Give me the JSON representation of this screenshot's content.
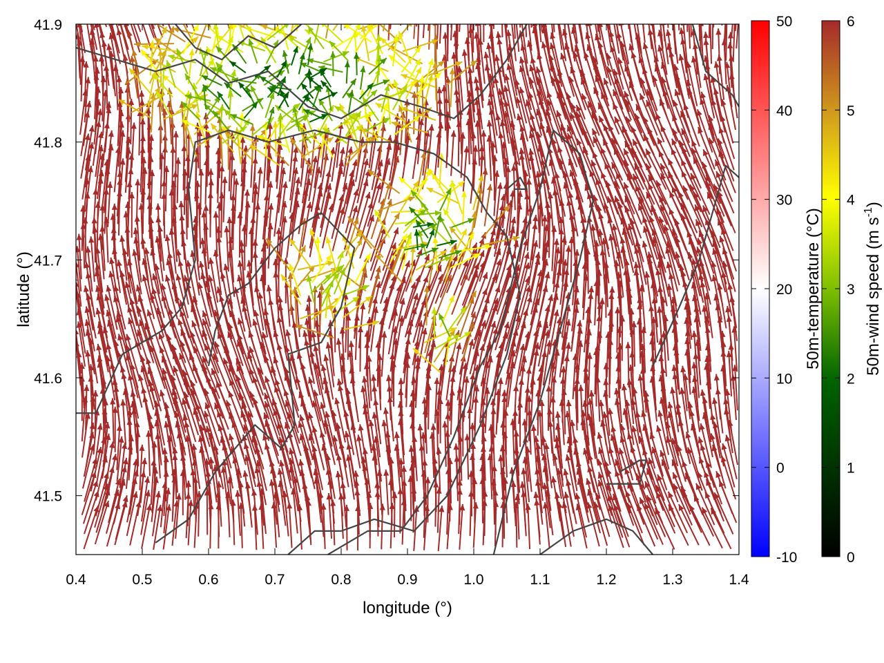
{
  "chart_data": {
    "type": "vector-field",
    "x": {
      "label": "longitude (°)",
      "range": [
        0.4,
        1.4
      ],
      "ticks": [
        0.4,
        0.5,
        0.6,
        0.7,
        0.8,
        0.9,
        1.0,
        1.1,
        1.2,
        1.3,
        1.4
      ],
      "tick_labels": [
        "0.4",
        "0.5",
        "0.6",
        "0.7",
        "0.8",
        "0.9",
        "1.0",
        "1.1",
        "1.2",
        "1.3",
        "1.4"
      ]
    },
    "y": {
      "label": "latitude (°)",
      "range": [
        41.45,
        41.9
      ],
      "ticks": [
        41.5,
        41.6,
        41.7,
        41.8,
        41.9
      ],
      "tick_labels": [
        "41.5",
        "41.6",
        "41.7",
        "41.8",
        "41.9"
      ]
    },
    "colorbars": [
      {
        "label": "50m-temperature (°C)",
        "range": [
          -10,
          50
        ],
        "ticks": [
          -10,
          0,
          10,
          20,
          30,
          40,
          50
        ],
        "tick_labels": [
          "-10",
          "0",
          "10",
          "20",
          "30",
          "40",
          "50"
        ],
        "colormap": [
          "#0000ff",
          "#ffffff",
          "#ff0000"
        ]
      },
      {
        "label": "50m-wind speed (m s-1)",
        "label_main": "50m-wind speed (m s",
        "label_sup": "-1",
        "label_close": ")",
        "range": [
          0,
          6
        ],
        "ticks": [
          0,
          1,
          2,
          3,
          4,
          5,
          6
        ],
        "tick_labels": [
          "0",
          "1",
          "2",
          "3",
          "4",
          "5",
          "6"
        ],
        "colormap": [
          "#000000",
          "#006400",
          "#7fbf00",
          "#ffff00",
          "#d09a1c",
          "#a52a2a"
        ]
      }
    ],
    "wind_field": {
      "encoding": "arrows colored by 50m-wind speed",
      "dominant_direction": "north to north-northwest",
      "dominant_speed": 6,
      "low_wind_zones": [
        {
          "lon": 0.72,
          "lat": 41.84,
          "lon_radius": 0.26,
          "lat_radius": 0.07,
          "min_speed": 1.8
        },
        {
          "lon": 0.93,
          "lat": 41.72,
          "lon_radius": 0.09,
          "lat_radius": 0.05,
          "min_speed": 2.0
        },
        {
          "lon": 0.78,
          "lat": 41.67,
          "lon_radius": 0.07,
          "lat_radius": 0.04,
          "min_speed": 3.2
        },
        {
          "lon": 0.95,
          "lat": 41.63,
          "lon_radius": 0.04,
          "lat_radius": 0.03,
          "min_speed": 2.8
        }
      ]
    },
    "contours": {
      "color": "#444444",
      "lines": [
        [
          [
            0.4,
            41.88
          ],
          [
            0.46,
            41.87
          ],
          [
            0.52,
            41.86
          ],
          [
            0.58,
            41.87
          ],
          [
            0.63,
            41.85
          ],
          [
            0.69,
            41.86
          ],
          [
            0.75,
            41.83
          ],
          [
            0.8,
            41.82
          ],
          [
            0.86,
            41.84
          ],
          [
            0.92,
            41.83
          ],
          [
            0.97,
            41.82
          ],
          [
            1.01,
            41.84
          ],
          [
            1.05,
            41.87
          ],
          [
            1.08,
            41.9
          ]
        ],
        [
          [
            0.55,
            41.9
          ],
          [
            0.58,
            41.88
          ],
          [
            0.62,
            41.87
          ],
          [
            0.66,
            41.89
          ],
          [
            0.7,
            41.88
          ],
          [
            0.74,
            41.9
          ]
        ],
        [
          [
            0.4,
            41.57
          ],
          [
            0.43,
            41.57
          ],
          [
            0.47,
            41.62
          ],
          [
            0.53,
            41.64
          ],
          [
            0.56,
            41.66
          ],
          [
            0.58,
            41.7
          ],
          [
            0.57,
            41.76
          ],
          [
            0.58,
            41.8
          ],
          [
            0.63,
            41.81
          ],
          [
            0.69,
            41.8
          ],
          [
            0.76,
            41.81
          ],
          [
            0.83,
            41.8
          ],
          [
            0.88,
            41.8
          ],
          [
            0.94,
            41.79
          ],
          [
            0.99,
            41.77
          ],
          [
            1.02,
            41.74
          ],
          [
            1.05,
            41.72
          ],
          [
            1.07,
            41.67
          ],
          [
            1.05,
            41.62
          ],
          [
            1.01,
            41.56
          ],
          [
            0.96,
            41.5
          ],
          [
            0.91,
            41.47
          ],
          [
            0.85,
            41.48
          ],
          [
            0.8,
            41.47
          ],
          [
            0.76,
            41.47
          ],
          [
            0.72,
            41.45
          ]
        ],
        [
          [
            0.52,
            41.46
          ],
          [
            0.57,
            41.48
          ],
          [
            0.61,
            41.52
          ],
          [
            0.67,
            41.56
          ],
          [
            0.71,
            41.54
          ],
          [
            0.73,
            41.56
          ],
          [
            0.72,
            41.62
          ],
          [
            0.77,
            41.63
          ],
          [
            0.8,
            41.66
          ],
          [
            0.82,
            41.71
          ],
          [
            0.77,
            41.74
          ],
          [
            0.74,
            41.73
          ],
          [
            0.7,
            41.71
          ],
          [
            0.66,
            41.68
          ],
          [
            0.63,
            41.67
          ],
          [
            0.61,
            41.64
          ],
          [
            0.6,
            41.61
          ]
        ],
        [
          [
            0.78,
            41.45
          ],
          [
            0.84,
            41.47
          ],
          [
            0.89,
            41.47
          ],
          [
            0.93,
            41.5
          ],
          [
            0.97,
            41.55
          ],
          [
            1.01,
            41.61
          ],
          [
            1.04,
            41.64
          ],
          [
            1.07,
            41.71
          ],
          [
            1.1,
            41.76
          ],
          [
            1.12,
            41.81
          ],
          [
            1.16,
            41.79
          ],
          [
            1.18,
            41.75
          ],
          [
            1.16,
            41.7
          ],
          [
            1.13,
            41.64
          ],
          [
            1.1,
            41.58
          ],
          [
            1.06,
            41.52
          ],
          [
            1.03,
            41.45
          ]
        ],
        [
          [
            1.1,
            41.45
          ],
          [
            1.15,
            41.47
          ],
          [
            1.2,
            41.48
          ],
          [
            1.24,
            41.47
          ],
          [
            1.27,
            41.45
          ]
        ],
        [
          [
            1.2,
            41.51
          ],
          [
            1.25,
            41.51
          ],
          [
            1.26,
            41.53
          ],
          [
            1.25,
            41.53
          ],
          [
            1.22,
            41.52
          ]
        ],
        [
          [
            1.27,
            41.61
          ],
          [
            1.31,
            41.66
          ],
          [
            1.34,
            41.7
          ],
          [
            1.36,
            41.74
          ],
          [
            1.38,
            41.78
          ],
          [
            1.4,
            41.77
          ]
        ],
        [
          [
            1.33,
            41.9
          ],
          [
            1.35,
            41.86
          ],
          [
            1.39,
            41.84
          ],
          [
            1.4,
            41.83
          ]
        ],
        [
          [
            1.06,
            41.76
          ],
          [
            1.08,
            41.76
          ],
          [
            1.07,
            41.77
          ],
          [
            1.05,
            41.76
          ]
        ]
      ]
    }
  }
}
